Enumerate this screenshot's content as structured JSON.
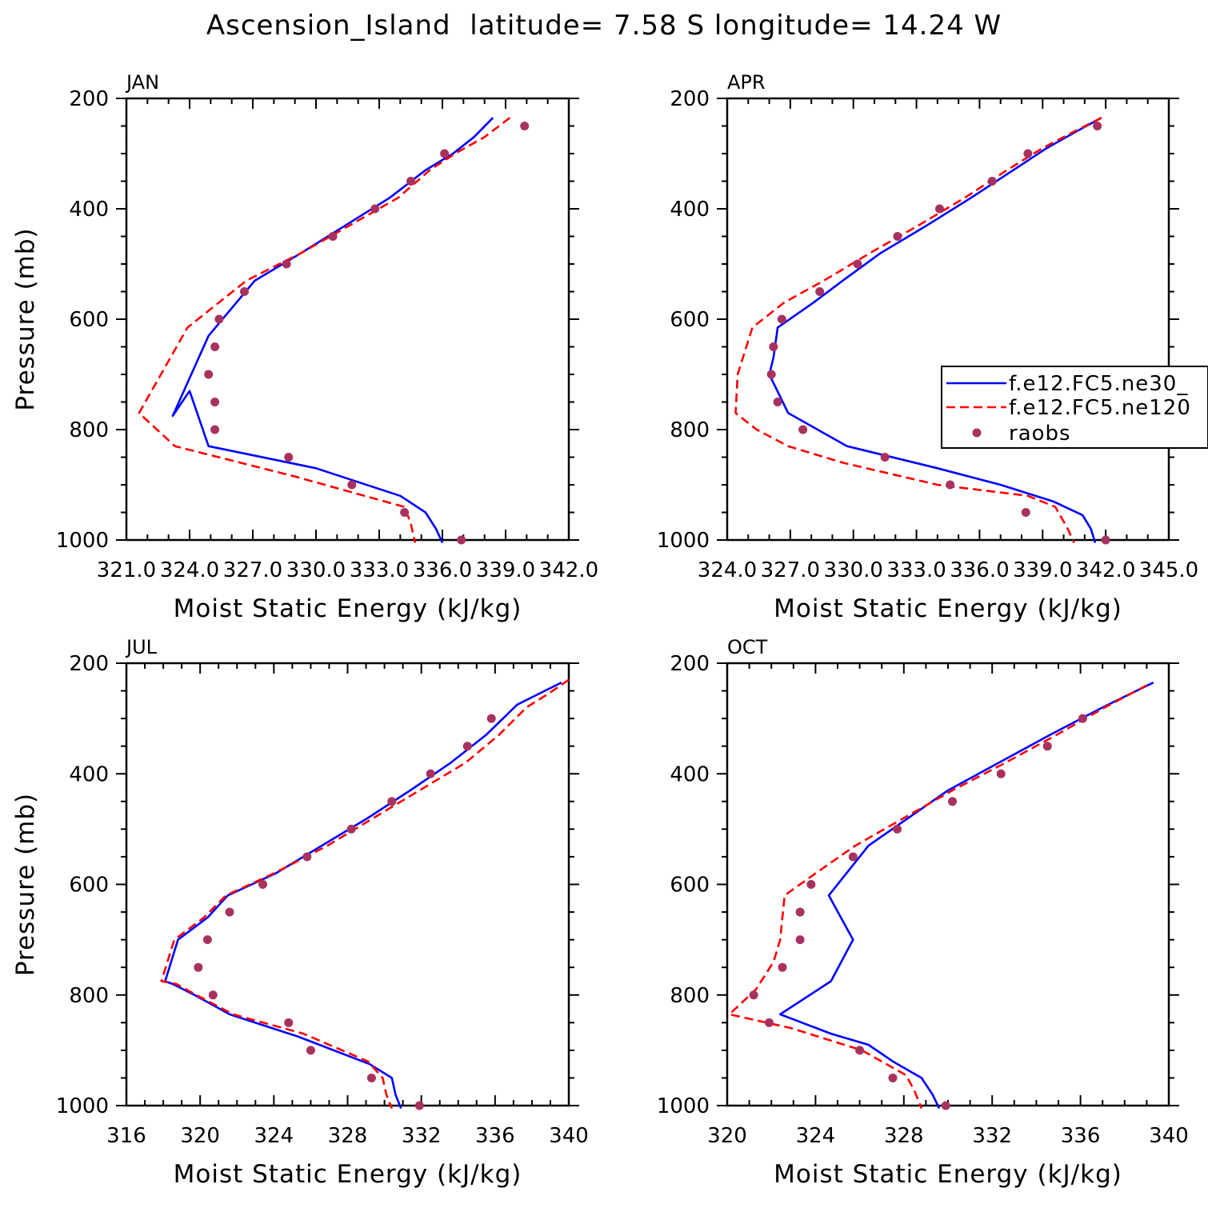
{
  "title": "Ascension_Island  latitude= 7.58 S longitude= 14.24 W",
  "colors": {
    "series1": "#0000ff",
    "series2": "#ff0000",
    "series3": "#a8325f"
  },
  "legend": {
    "entries": [
      "f.e12.FC5.ne30_",
      "f.e12.FC5.ne120",
      "raobs"
    ]
  },
  "chart_data": [
    {
      "type": "line",
      "panel": "JAN",
      "xlabel": "Moist Static Energy (kJ/kg)",
      "ylabel": "Pressure (mb)",
      "xlim": [
        321.0,
        342.0
      ],
      "ylim": [
        1000,
        200
      ],
      "xticks": [
        321.0,
        324.0,
        327.0,
        330.0,
        333.0,
        336.0,
        339.0,
        342.0
      ],
      "xticklabels": [
        "321.0",
        "324.0",
        "327.0",
        "330.0",
        "333.0",
        "336.0",
        "339.0",
        "342.0"
      ],
      "yticks": [
        200,
        400,
        600,
        800,
        1000
      ],
      "series": [
        {
          "name": "f.e12.FC5.ne30_",
          "style": "solid",
          "color": "#0000ff",
          "x": [
            338.4,
            337.5,
            336.5,
            335.2,
            333.5,
            331.4,
            329.3,
            327.1,
            324.9,
            323.2,
            324.0,
            324.9,
            330.0,
            334.0,
            335.2,
            335.7,
            336.0
          ],
          "y": [
            235,
            270,
            300,
            330,
            380,
            430,
            480,
            530,
            630,
            775,
            730,
            830,
            870,
            920,
            950,
            980,
            1005
          ]
        },
        {
          "name": "f.e12.FC5.ne120",
          "style": "dashed",
          "color": "#ff0000",
          "x": [
            339.2,
            338.0,
            336.6,
            335.4,
            333.9,
            331.6,
            329.3,
            326.7,
            323.9,
            321.6,
            323.3,
            329.0,
            332.3,
            334.2,
            334.5,
            334.7
          ],
          "y": [
            235,
            270,
            300,
            330,
            380,
            430,
            480,
            530,
            615,
            770,
            830,
            885,
            920,
            940,
            970,
            1005
          ]
        },
        {
          "name": "raobs",
          "style": "markers",
          "color": "#a8325f",
          "x": [
            339.9,
            336.1,
            334.5,
            332.8,
            330.8,
            328.6,
            326.6,
            325.4,
            325.2,
            324.9,
            325.2,
            325.2,
            328.7,
            331.7,
            334.2,
            336.9
          ],
          "y": [
            250,
            300,
            350,
            400,
            450,
            500,
            550,
            600,
            650,
            700,
            750,
            800,
            850,
            900,
            950,
            1000
          ]
        }
      ]
    },
    {
      "type": "line",
      "panel": "APR",
      "xlabel": "Moist Static Energy (kJ/kg)",
      "ylabel": "",
      "xlim": [
        324.0,
        345.0
      ],
      "ylim": [
        1000,
        200
      ],
      "xticks": [
        324.0,
        327.0,
        330.0,
        333.0,
        336.0,
        339.0,
        342.0,
        345.0
      ],
      "xticklabels": [
        "324.0",
        "327.0",
        "330.0",
        "333.0",
        "336.0",
        "339.0",
        "342.0",
        "345.0"
      ],
      "yticks": [
        200,
        400,
        600,
        800,
        1000
      ],
      "series": [
        {
          "name": "f.e12.FC5.ne30_",
          "style": "solid",
          "color": "#0000ff",
          "x": [
            341.8,
            340.6,
            339.2,
            337.6,
            335.6,
            333.5,
            331.3,
            329.5,
            328.1,
            326.4,
            326.2,
            326.0,
            326.9,
            329.7,
            334.0,
            337.0,
            339.5,
            340.9,
            341.3,
            341.5
          ],
          "y": [
            235,
            260,
            290,
            330,
            380,
            430,
            480,
            530,
            570,
            615,
            670,
            700,
            770,
            830,
            870,
            900,
            930,
            955,
            980,
            1005
          ]
        },
        {
          "name": "f.e12.FC5.ne120",
          "style": "dashed",
          "color": "#ff0000",
          "x": [
            341.8,
            340.5,
            339.0,
            337.3,
            335.3,
            333.1,
            330.8,
            328.6,
            326.7,
            325.2,
            324.5,
            324.4,
            325.4,
            326.9,
            329.5,
            334.0,
            338.3,
            339.6,
            340.2,
            340.5
          ],
          "y": [
            235,
            260,
            290,
            330,
            380,
            430,
            480,
            530,
            570,
            615,
            700,
            770,
            800,
            830,
            860,
            900,
            920,
            940,
            980,
            1005
          ]
        },
        {
          "name": "raobs",
          "style": "markers",
          "color": "#a8325f",
          "x": [
            341.6,
            338.3,
            336.6,
            334.1,
            332.1,
            330.2,
            328.4,
            326.6,
            326.2,
            326.1,
            326.4,
            327.6,
            331.5,
            334.6,
            338.2,
            342.0
          ],
          "y": [
            250,
            300,
            350,
            400,
            450,
            500,
            550,
            600,
            650,
            700,
            750,
            800,
            850,
            900,
            950,
            1000
          ]
        }
      ]
    },
    {
      "type": "line",
      "panel": "JUL",
      "xlabel": "Moist Static Energy (kJ/kg)",
      "ylabel": "Pressure (mb)",
      "xlim": [
        316,
        340
      ],
      "ylim": [
        1000,
        200
      ],
      "xticks": [
        316,
        320,
        324,
        328,
        332,
        336,
        340
      ],
      "xticklabels": [
        "316",
        "320",
        "324",
        "328",
        "332",
        "336",
        "340"
      ],
      "yticks": [
        200,
        400,
        600,
        800,
        1000
      ],
      "series": [
        {
          "name": "f.e12.FC5.ne30_",
          "style": "solid",
          "color": "#0000ff",
          "x": [
            339.6,
            338.4,
            337.2,
            335.5,
            333.6,
            331.4,
            329.1,
            326.6,
            324.1,
            321.5,
            320.4,
            318.8,
            318.1,
            318.5,
            319.7,
            321.6,
            325.3,
            329.2,
            330.4,
            330.6,
            330.9
          ],
          "y": [
            235,
            255,
            275,
            330,
            380,
            430,
            480,
            530,
            580,
            620,
            660,
            700,
            775,
            780,
            800,
            835,
            875,
            925,
            950,
            980,
            1005
          ]
        },
        {
          "name": "f.e12.FC5.ne120",
          "style": "dashed",
          "color": "#ff0000",
          "x": [
            340.0,
            338.9,
            337.7,
            336.2,
            334.4,
            331.9,
            329.4,
            326.9,
            324.0,
            321.4,
            320.2,
            318.6,
            317.9,
            318.7,
            319.8,
            321.8,
            325.6,
            329.1,
            329.9,
            330.1,
            330.4
          ],
          "y": [
            230,
            255,
            280,
            330,
            380,
            430,
            480,
            530,
            580,
            620,
            660,
            700,
            775,
            780,
            800,
            835,
            870,
            920,
            950,
            980,
            1005
          ]
        },
        {
          "name": "raobs",
          "style": "markers",
          "color": "#a8325f",
          "x": [
            335.8,
            334.5,
            332.5,
            330.4,
            328.2,
            325.8,
            323.4,
            321.6,
            320.4,
            319.9,
            320.7,
            324.8,
            326.0,
            329.3,
            331.9
          ],
          "y": [
            300,
            350,
            400,
            450,
            500,
            550,
            600,
            650,
            700,
            750,
            800,
            850,
            900,
            950,
            1000
          ]
        }
      ]
    },
    {
      "type": "line",
      "panel": "OCT",
      "xlabel": "Moist Static Energy (kJ/kg)",
      "ylabel": "",
      "xlim": [
        320,
        340
      ],
      "ylim": [
        1000,
        200
      ],
      "xticks": [
        320,
        324,
        328,
        332,
        336,
        340
      ],
      "xticklabels": [
        "320",
        "324",
        "328",
        "332",
        "336",
        "340"
      ],
      "yticks": [
        200,
        400,
        600,
        800,
        1000
      ],
      "series": [
        {
          "name": "f.e12.FC5.ne30_",
          "style": "solid",
          "color": "#0000ff",
          "x": [
            339.3,
            337.0,
            334.6,
            332.3,
            330.0,
            328.2,
            326.4,
            324.6,
            325.7,
            324.7,
            322.4,
            324.7,
            326.4,
            327.5,
            328.8,
            329.3,
            329.6
          ],
          "y": [
            235,
            280,
            330,
            380,
            430,
            480,
            530,
            620,
            700,
            775,
            835,
            870,
            890,
            920,
            950,
            980,
            1005
          ]
        },
        {
          "name": "f.e12.FC5.ne120",
          "style": "dashed",
          "color": "#ff0000",
          "x": [
            339.0,
            337.1,
            334.9,
            332.6,
            330.2,
            328.0,
            325.8,
            324.0,
            322.6,
            322.4,
            322.1,
            321.3,
            320.1,
            322.9,
            326.1,
            328.1,
            328.5,
            328.8
          ],
          "y": [
            240,
            280,
            330,
            380,
            430,
            480,
            530,
            580,
            620,
            700,
            740,
            790,
            835,
            860,
            900,
            945,
            975,
            1005
          ]
        },
        {
          "name": "raobs",
          "style": "markers",
          "color": "#a8325f",
          "x": [
            336.1,
            334.5,
            332.4,
            330.2,
            327.7,
            325.7,
            323.8,
            323.3,
            323.3,
            322.5,
            321.2,
            321.9,
            326.0,
            327.5,
            329.9
          ],
          "y": [
            300,
            350,
            400,
            450,
            500,
            550,
            600,
            650,
            700,
            750,
            800,
            850,
            900,
            950,
            1000
          ]
        }
      ]
    }
  ]
}
